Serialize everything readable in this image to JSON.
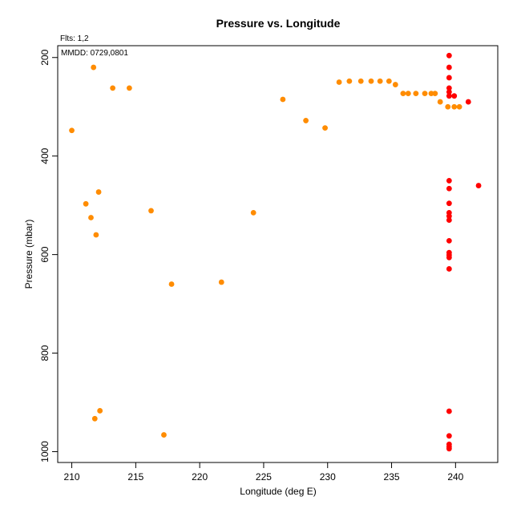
{
  "chart_data": {
    "type": "scatter",
    "title": "Pressure vs. Longitude",
    "xlabel": "Longitude (deg E)",
    "ylabel": "Pressure (mbar)",
    "flts_note": "Flts: 1,2",
    "mmdd_note": "MMDD: 0729,0801",
    "xlim": [
      208.9,
      243.3
    ],
    "ylim": [
      1022,
      176
    ],
    "y_reversed": true,
    "grid": false,
    "x_ticks": [
      "210",
      "215",
      "220",
      "225",
      "230",
      "235",
      "240"
    ],
    "y_ticks": [
      "200",
      "400",
      "600",
      "800",
      "1000"
    ],
    "series": [
      {
        "color": "#ff8c00",
        "points": [
          [
            210.0,
            348
          ],
          [
            211.7,
            220
          ],
          [
            213.2,
            262
          ],
          [
            214.5,
            262
          ],
          [
            211.1,
            497
          ],
          [
            211.5,
            525
          ],
          [
            211.9,
            560
          ],
          [
            212.1,
            473
          ],
          [
            216.2,
            511
          ],
          [
            217.8,
            660
          ],
          [
            221.7,
            656
          ],
          [
            224.2,
            515
          ],
          [
            226.5,
            285
          ],
          [
            228.3,
            328
          ],
          [
            229.8,
            343
          ],
          [
            230.9,
            250
          ],
          [
            231.7,
            248
          ],
          [
            232.6,
            248
          ],
          [
            233.4,
            248
          ],
          [
            234.1,
            248
          ],
          [
            234.8,
            248
          ],
          [
            235.3,
            255
          ],
          [
            235.9,
            273
          ],
          [
            236.3,
            273
          ],
          [
            236.9,
            273
          ],
          [
            237.6,
            273
          ],
          [
            238.1,
            273
          ],
          [
            238.4,
            273
          ],
          [
            238.8,
            290
          ],
          [
            239.4,
            300
          ],
          [
            239.9,
            300
          ],
          [
            240.3,
            300
          ],
          [
            211.8,
            933
          ],
          [
            212.2,
            917
          ],
          [
            217.2,
            966
          ]
        ]
      },
      {
        "color": "#ff0000",
        "points": [
          [
            239.5,
            196
          ],
          [
            239.5,
            220
          ],
          [
            239.5,
            241
          ],
          [
            239.5,
            262
          ],
          [
            239.5,
            270
          ],
          [
            239.5,
            278
          ],
          [
            239.9,
            278
          ],
          [
            241.0,
            290
          ],
          [
            239.5,
            450
          ],
          [
            239.5,
            466
          ],
          [
            239.5,
            496
          ],
          [
            239.5,
            515
          ],
          [
            239.5,
            522
          ],
          [
            239.5,
            530
          ],
          [
            241.8,
            460
          ],
          [
            239.5,
            572
          ],
          [
            239.5,
            596
          ],
          [
            239.5,
            601
          ],
          [
            239.5,
            606
          ],
          [
            239.5,
            629
          ],
          [
            239.5,
            918
          ],
          [
            239.5,
            968
          ],
          [
            239.5,
            985
          ],
          [
            239.5,
            990
          ],
          [
            239.5,
            994
          ]
        ]
      }
    ]
  }
}
